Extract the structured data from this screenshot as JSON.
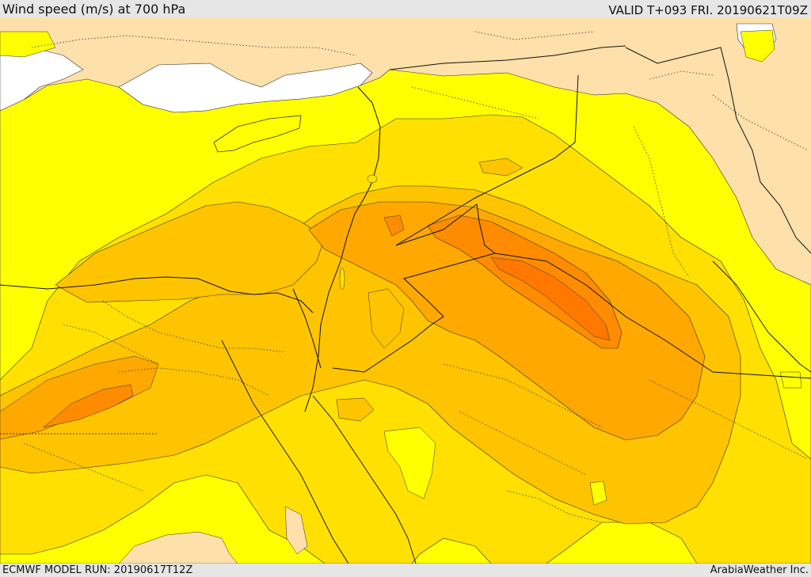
{
  "header": {
    "title": "Wind speed (m/s) at 700 hPa",
    "valid": "VALID T+093 FRI. 20190621T09Z"
  },
  "footer": {
    "model_run": "ECMWF MODEL RUN: 20190617T12Z",
    "credit": "ArabiaWeather Inc."
  },
  "colors": {
    "land": "#fde0aa",
    "sea": "#ffffff",
    "level_1": "#ffff00",
    "level_2": "#ffe000",
    "level_3": "#ffc400",
    "level_4": "#ffa800",
    "level_5": "#ff8c00",
    "level_6": "#ff7800",
    "contour": "#333333",
    "border": "#111111"
  }
}
